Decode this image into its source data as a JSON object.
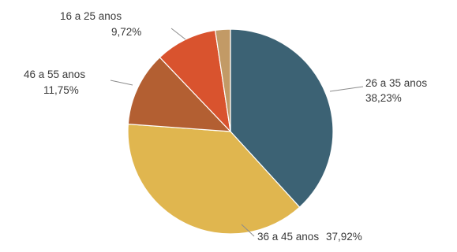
{
  "chart_data": {
    "type": "pie",
    "title": "",
    "start_angle_deg": 0,
    "direction": "clockwise",
    "slices": [
      {
        "label": "26 a 35 anos",
        "value": 38.23,
        "value_label": "38,23%",
        "color": "#3c6274"
      },
      {
        "label": "36 a 45 anos",
        "value": 37.92,
        "value_label": "37,92%",
        "color": "#e0b64f"
      },
      {
        "label": "46 a 55 anos",
        "value": 11.75,
        "value_label": "11,75%",
        "color": "#b35f32"
      },
      {
        "label": "16 a 25 anos",
        "value": 9.72,
        "value_label": "9,72%",
        "color": "#d9532e"
      },
      {
        "label": "",
        "value": 2.38,
        "value_label": "",
        "color": "#c29a66"
      }
    ]
  }
}
